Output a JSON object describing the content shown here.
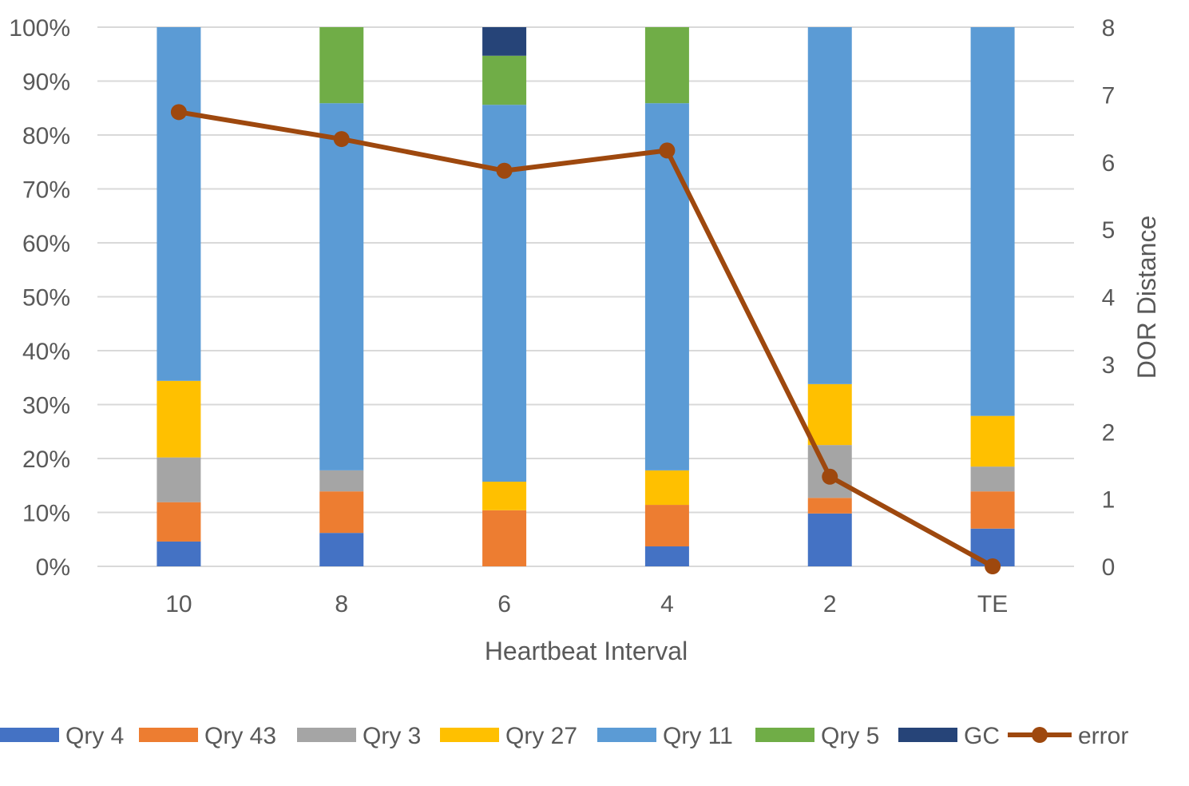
{
  "chart_data": {
    "type": "bar",
    "stacked": true,
    "percent_stacked": true,
    "categories": [
      "10",
      "8",
      "6",
      "4",
      "2",
      "TE"
    ],
    "xlabel": "Heartbeat Interval",
    "ylabel": "",
    "y2label": "DOR Distance",
    "ylim": [
      0,
      100
    ],
    "y_ticks": [
      "0%",
      "10%",
      "20%",
      "30%",
      "40%",
      "50%",
      "60%",
      "70%",
      "80%",
      "90%",
      "100%"
    ],
    "y2lim": [
      0,
      8
    ],
    "y2_ticks": [
      "0",
      "1",
      "2",
      "3",
      "4",
      "5",
      "6",
      "7",
      "8"
    ],
    "grid": true,
    "legend_position": "bottom",
    "series": [
      {
        "name": "Qry 4",
        "color": "#4472C4",
        "values": [
          4.6,
          6.2,
          0,
          3.7,
          9.8,
          7.0
        ]
      },
      {
        "name": "Qry 43",
        "color": "#ED7D31",
        "values": [
          7.3,
          7.7,
          10.4,
          7.7,
          2.9,
          6.9
        ]
      },
      {
        "name": "Qry 3",
        "color": "#A5A5A5",
        "values": [
          8.3,
          3.9,
          0,
          0,
          9.8,
          4.6
        ]
      },
      {
        "name": "Qry 27",
        "color": "#FFC000",
        "values": [
          14.2,
          0,
          5.3,
          6.4,
          11.3,
          9.4
        ]
      },
      {
        "name": "Qry 11",
        "color": "#5B9BD5",
        "values": [
          65.6,
          68.1,
          69.9,
          68.1,
          66.2,
          72.1
        ]
      },
      {
        "name": "Qry 5",
        "color": "#70AD47",
        "values": [
          0,
          14.1,
          9.1,
          14.1,
          0,
          0
        ]
      },
      {
        "name": "GC",
        "color": "#264478",
        "values": [
          0,
          0,
          5.3,
          0,
          0,
          0
        ]
      }
    ],
    "line_series": {
      "name": "error",
      "type": "line",
      "axis": "secondary",
      "color": "#9E480E",
      "markers": true,
      "values": [
        6.74,
        6.34,
        5.87,
        6.17,
        1.33,
        0
      ]
    }
  }
}
